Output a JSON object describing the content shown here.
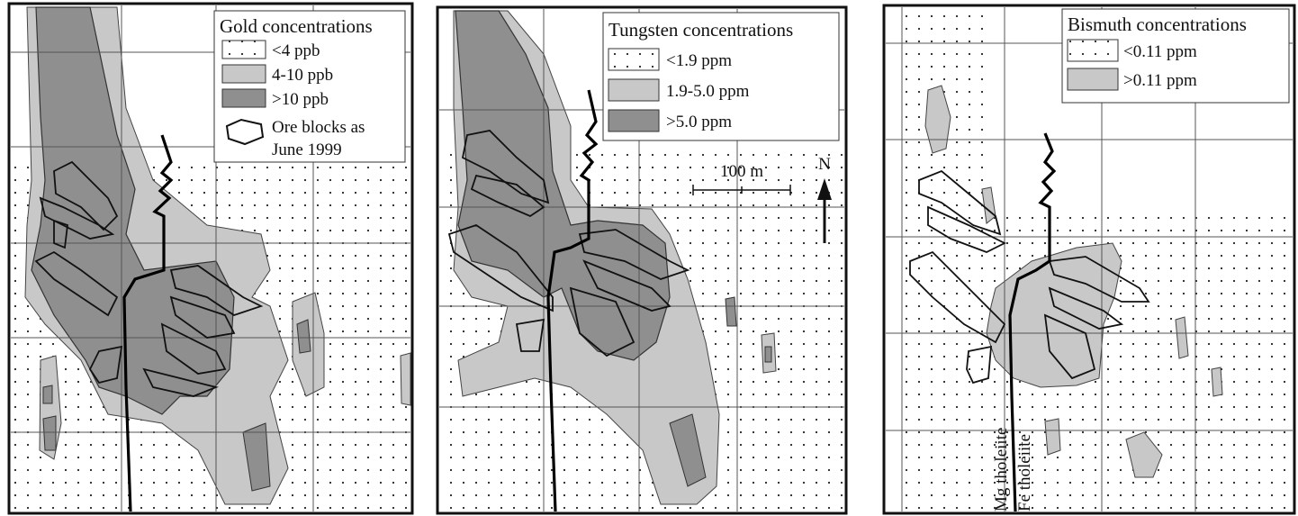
{
  "panels": [
    {
      "id": "gold",
      "legend": {
        "title": "Gold concentrations",
        "items": [
          {
            "label": "<4 ppb",
            "swatch": "dots"
          },
          {
            "label": "4-10 ppb",
            "swatch": "light"
          },
          {
            "label": ">10 ppb",
            "swatch": "dark"
          },
          {
            "label": "Ore blocks as June 1999",
            "line1": "Ore blocks as",
            "line2": "June 1999",
            "swatch": "outline"
          }
        ]
      }
    },
    {
      "id": "tungsten",
      "legend": {
        "title": "Tungsten concentrations",
        "items": [
          {
            "label": "<1.9 ppm",
            "swatch": "dots"
          },
          {
            "label": "1.9-5.0 ppm",
            "swatch": "light"
          },
          {
            "label": ">5.0 ppm",
            "swatch": "dark"
          }
        ]
      },
      "scale_bar": "100 m",
      "north_arrow": "N"
    },
    {
      "id": "bismuth",
      "legend": {
        "title": "Bismuth concentrations",
        "items": [
          {
            "label": "<0.11 ppm",
            "swatch": "dots"
          },
          {
            "label": ">0.11 ppm",
            "swatch": "light"
          }
        ]
      },
      "contact_labels": [
        "Mg tholeiite",
        "Fe tholeiite"
      ]
    }
  ],
  "colors": {
    "light_fill": "#c8c8c8",
    "dark_fill": "#8f8f8f",
    "border": "#111111",
    "grid": "#555555",
    "dots": "#222222"
  }
}
